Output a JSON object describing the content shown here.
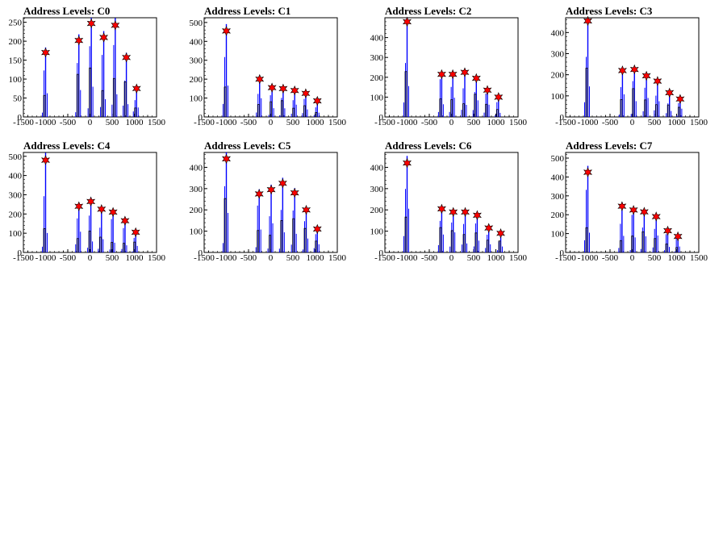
{
  "chart_data": [
    {
      "type": "bar",
      "title": "Address Levels: C0",
      "xlim": [
        -1500,
        1500
      ],
      "ylim": [
        0,
        262
      ],
      "x_ticks": [
        "-1500",
        "-1000",
        "-500",
        "0",
        "500",
        "1000",
        "1500"
      ],
      "y_ticks": [
        "0",
        "50",
        "100",
        "150",
        "200",
        "250"
      ],
      "peaks": [
        {
          "x": -1000,
          "y": 170
        },
        {
          "x": -250,
          "y": 202
        },
        {
          "x": 30,
          "y": 247
        },
        {
          "x": 310,
          "y": 210
        },
        {
          "x": 570,
          "y": 242
        },
        {
          "x": 820,
          "y": 157
        },
        {
          "x": 1050,
          "y": 75
        }
      ]
    },
    {
      "type": "bar",
      "title": "Address Levels: C1",
      "xlim": [
        -1500,
        1500
      ],
      "ylim": [
        0,
        525
      ],
      "x_ticks": [
        "-1500",
        "-1000",
        "-500",
        "0",
        "500",
        "1000",
        "1500"
      ],
      "y_ticks": [
        "0",
        "100",
        "200",
        "300",
        "400",
        "500"
      ],
      "peaks": [
        {
          "x": -1000,
          "y": 455
        },
        {
          "x": -250,
          "y": 200
        },
        {
          "x": 30,
          "y": 155
        },
        {
          "x": 280,
          "y": 150
        },
        {
          "x": 540,
          "y": 140
        },
        {
          "x": 790,
          "y": 125
        },
        {
          "x": 1050,
          "y": 85
        }
      ]
    },
    {
      "type": "bar",
      "title": "Address Levels: C2",
      "xlim": [
        -1500,
        1500
      ],
      "ylim": [
        0,
        500
      ],
      "x_ticks": [
        "-1500",
        "-1000",
        "-500",
        "0",
        "500",
        "1000",
        "1500"
      ],
      "y_ticks": [
        "0",
        "100",
        "200",
        "300",
        "400"
      ],
      "peaks": [
        {
          "x": -1000,
          "y": 480
        },
        {
          "x": -220,
          "y": 215
        },
        {
          "x": 30,
          "y": 215
        },
        {
          "x": 300,
          "y": 225
        },
        {
          "x": 560,
          "y": 195
        },
        {
          "x": 810,
          "y": 135
        },
        {
          "x": 1060,
          "y": 100
        }
      ]
    },
    {
      "type": "bar",
      "title": "Address Levels: C3",
      "xlim": [
        -1500,
        1500
      ],
      "ylim": [
        0,
        470
      ],
      "x_ticks": [
        "-1500",
        "-1000",
        "-500",
        "0",
        "500",
        "1000",
        "1500"
      ],
      "y_ticks": [
        "0",
        "100",
        "200",
        "300",
        "400"
      ],
      "peaks": [
        {
          "x": -1000,
          "y": 455
        },
        {
          "x": -220,
          "y": 220
        },
        {
          "x": 50,
          "y": 225
        },
        {
          "x": 320,
          "y": 195
        },
        {
          "x": 570,
          "y": 170
        },
        {
          "x": 840,
          "y": 115
        },
        {
          "x": 1080,
          "y": 85
        }
      ]
    },
    {
      "type": "bar",
      "title": "Address Levels: C4",
      "xlim": [
        -1500,
        1500
      ],
      "ylim": [
        0,
        520
      ],
      "x_ticks": [
        "-1500",
        "-1000",
        "-500",
        "0",
        "500",
        "1000",
        "1500"
      ],
      "y_ticks": [
        "0",
        "100",
        "200",
        "300",
        "400",
        "500"
      ],
      "peaks": [
        {
          "x": -1000,
          "y": 480
        },
        {
          "x": -250,
          "y": 240
        },
        {
          "x": 20,
          "y": 265
        },
        {
          "x": 260,
          "y": 225
        },
        {
          "x": 520,
          "y": 210
        },
        {
          "x": 790,
          "y": 165
        },
        {
          "x": 1030,
          "y": 105
        }
      ]
    },
    {
      "type": "bar",
      "title": "Address Levels: C5",
      "xlim": [
        -1500,
        1500
      ],
      "ylim": [
        0,
        470
      ],
      "x_ticks": [
        "-1500",
        "-1000",
        "-500",
        "0",
        "500",
        "1000",
        "1500"
      ],
      "y_ticks": [
        "0",
        "100",
        "200",
        "300",
        "400"
      ],
      "peaks": [
        {
          "x": -1000,
          "y": 440
        },
        {
          "x": -260,
          "y": 275
        },
        {
          "x": 10,
          "y": 295
        },
        {
          "x": 270,
          "y": 325
        },
        {
          "x": 540,
          "y": 280
        },
        {
          "x": 800,
          "y": 200
        },
        {
          "x": 1050,
          "y": 110
        }
      ]
    },
    {
      "type": "bar",
      "title": "Address Levels: C6",
      "xlim": [
        -1500,
        1500
      ],
      "ylim": [
        0,
        470
      ],
      "x_ticks": [
        "-1500",
        "-1000",
        "-500",
        "0",
        "500",
        "1000",
        "1500"
      ],
      "y_ticks": [
        "0",
        "100",
        "200",
        "300",
        "400"
      ],
      "peaks": [
        {
          "x": -1000,
          "y": 420
        },
        {
          "x": -220,
          "y": 205
        },
        {
          "x": 40,
          "y": 190
        },
        {
          "x": 310,
          "y": 190
        },
        {
          "x": 580,
          "y": 175
        },
        {
          "x": 840,
          "y": 115
        },
        {
          "x": 1110,
          "y": 90
        }
      ]
    },
    {
      "type": "bar",
      "title": "Address Levels: C7",
      "xlim": [
        -1500,
        1500
      ],
      "ylim": [
        0,
        530
      ],
      "x_ticks": [
        "-1500",
        "-1000",
        "-500",
        "0",
        "500",
        "1000",
        "1500"
      ],
      "y_ticks": [
        "0",
        "100",
        "200",
        "300",
        "400",
        "500"
      ],
      "peaks": [
        {
          "x": -1000,
          "y": 425
        },
        {
          "x": -230,
          "y": 245
        },
        {
          "x": 30,
          "y": 225
        },
        {
          "x": 270,
          "y": 215
        },
        {
          "x": 540,
          "y": 190
        },
        {
          "x": 800,
          "y": 115
        },
        {
          "x": 1030,
          "y": 85
        }
      ]
    }
  ],
  "colors": {
    "histogram_line": "#0000ff",
    "secondary_line": "#000000",
    "marker_fill": "#ff0000",
    "marker_stroke": "#000000",
    "axes": "#000000"
  }
}
